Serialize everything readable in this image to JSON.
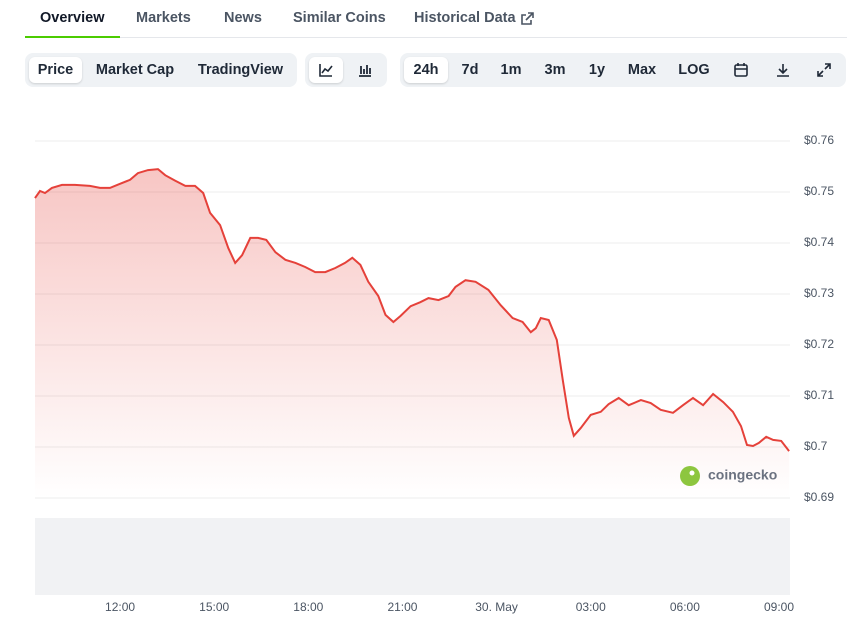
{
  "tabs": [
    "Overview",
    "Markets",
    "News",
    "Similar Coins",
    "Historical Data"
  ],
  "chart_modes": [
    "Price",
    "Market Cap",
    "TradingView"
  ],
  "ranges": [
    "24h",
    "7d",
    "1m",
    "3m",
    "1y",
    "Max",
    "LOG"
  ],
  "watermark": "coingecko",
  "chart_data": {
    "type": "line",
    "series": [
      {
        "color": "#e5413a",
        "x": [
          9.29,
          9.45,
          9.61,
          9.83,
          10.15,
          10.56,
          11.04,
          11.36,
          11.68,
          12,
          12.32,
          12.57,
          12.89,
          13.21,
          13.44,
          13.76,
          14.08,
          14.39,
          14.65,
          14.87,
          15.19,
          15.45,
          15.67,
          15.89,
          16.15,
          16.4,
          16.66,
          16.95,
          17.27,
          17.59,
          17.9,
          18.22,
          18.54,
          18.86,
          19.17,
          19.4,
          19.66,
          19.91,
          20.23,
          20.46,
          20.71,
          20.94,
          21.26,
          21.57,
          21.83,
          22.15,
          22.47,
          22.69,
          23.01,
          23.33,
          23.74,
          24.13,
          24.51,
          24.83,
          25.09,
          25.25,
          25.41,
          25.66,
          25.92,
          26.11,
          26.3,
          26.46,
          26.68,
          27,
          27.32,
          27.57,
          27.89,
          28.21,
          28.6,
          28.91,
          29.23,
          29.62,
          29.94,
          30.26,
          30.58,
          30.9,
          31.22,
          31.53,
          31.79,
          31.98,
          32.17,
          32.36,
          32.59,
          32.81,
          33.07,
          33.32
        ],
        "values": [
          0.7488,
          0.7502,
          0.7498,
          0.7508,
          0.7514,
          0.7514,
          0.7512,
          0.7508,
          0.7508,
          0.7516,
          0.7524,
          0.7537,
          0.7543,
          0.7545,
          0.7533,
          0.7522,
          0.7512,
          0.7512,
          0.7498,
          0.7459,
          0.7435,
          0.739,
          0.7361,
          0.7376,
          0.741,
          0.741,
          0.7406,
          0.7382,
          0.7367,
          0.7361,
          0.7353,
          0.7343,
          0.7343,
          0.7351,
          0.7361,
          0.7371,
          0.7357,
          0.7324,
          0.7296,
          0.7259,
          0.7245,
          0.7257,
          0.7276,
          0.7284,
          0.7292,
          0.7288,
          0.7296,
          0.7314,
          0.7327,
          0.7324,
          0.7308,
          0.7278,
          0.7253,
          0.7245,
          0.7225,
          0.7233,
          0.7253,
          0.7249,
          0.721,
          0.7131,
          0.7057,
          0.7022,
          0.7037,
          0.7063,
          0.7069,
          0.7084,
          0.7096,
          0.7082,
          0.7092,
          0.7086,
          0.7073,
          0.7067,
          0.7082,
          0.7096,
          0.7082,
          0.7104,
          0.7088,
          0.7069,
          0.7041,
          0.7004,
          0.7002,
          0.7008,
          0.702,
          0.7014,
          0.7012,
          0.6992
        ]
      }
    ],
    "xlim": [
      9.29,
      33.35
    ],
    "xticks": [
      {
        "value": 12,
        "label": "12:00"
      },
      {
        "value": 15,
        "label": "15:00"
      },
      {
        "value": 18,
        "label": "18:00"
      },
      {
        "value": 21,
        "label": "21:00"
      },
      {
        "value": 24,
        "label": "30. May"
      },
      {
        "value": 27,
        "label": "03:00"
      },
      {
        "value": 30,
        "label": "06:00"
      },
      {
        "value": 33,
        "label": "09:00"
      }
    ],
    "ylim": [
      0.69,
      0.76
    ],
    "yticks": [
      {
        "value": 0.76,
        "label": "$0.76"
      },
      {
        "value": 0.75,
        "label": "$0.75"
      },
      {
        "value": 0.74,
        "label": "$0.74"
      },
      {
        "value": 0.73,
        "label": "$0.73"
      },
      {
        "value": 0.72,
        "label": "$0.72"
      },
      {
        "value": 0.71,
        "label": "$0.71"
      },
      {
        "value": 0.7,
        "label": "$0.7"
      },
      {
        "value": 0.69,
        "label": "$0.69"
      }
    ],
    "grid": true
  }
}
